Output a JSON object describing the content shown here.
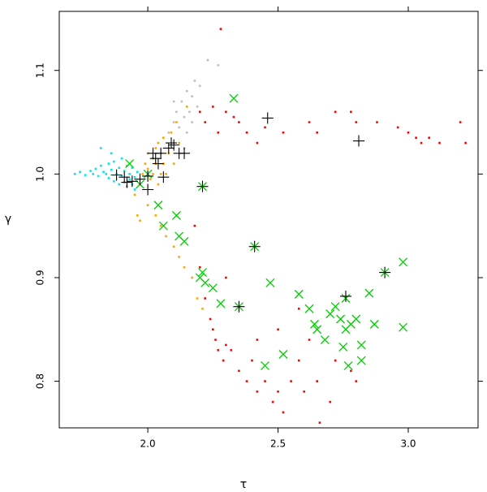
{
  "chart_data": {
    "type": "scatter",
    "x_label": "τ",
    "y_label": "γ",
    "xlim": [
      1.66,
      3.268
    ],
    "ylim": [
      0.755,
      1.157
    ],
    "xticks": [
      {
        "value": 2.0,
        "label": "2.0"
      },
      {
        "value": 2.5,
        "label": "2.5"
      },
      {
        "value": 3.0,
        "label": "3.0"
      }
    ],
    "yticks": [
      {
        "value": 0.8,
        "label": "0.8"
      },
      0.9,
      {
        "value": 1.0,
        "label": "1.0"
      },
      1.1
    ],
    "series": [
      {
        "color": "#00e5ee",
        "marker": "square",
        "x": [
          1.72,
          1.74,
          1.76,
          1.78,
          1.79,
          1.8,
          1.81,
          1.82,
          1.83,
          1.84,
          1.85,
          1.85,
          1.86,
          1.87,
          1.87,
          1.88,
          1.89,
          1.89,
          1.9,
          1.9,
          1.91,
          1.91,
          1.92,
          1.92,
          1.93,
          1.93,
          1.94,
          1.94,
          1.95,
          1.95,
          1.96,
          1.82,
          1.86
        ],
        "values": [
          1.0,
          1.002,
          0.999,
          1.003,
          1.0,
          1.005,
          0.998,
          1.008,
          1.002,
          1.0,
          1.01,
          0.996,
          1.004,
          0.993,
          1.012,
          1.0,
          0.99,
          1.006,
          0.998,
          1.015,
          0.992,
          1.003,
          0.988,
          1.008,
          0.995,
          1.0,
          0.99,
          1.006,
          0.997,
          0.985,
          1.002,
          1.025,
          1.02
        ]
      },
      {
        "color": "#bebebe",
        "marker": "square",
        "x": [
          2.08,
          2.1,
          2.11,
          2.12,
          2.13,
          2.14,
          2.15,
          2.16,
          2.17,
          2.18,
          2.19,
          2.2,
          2.12,
          2.15,
          2.08,
          2.23,
          2.27,
          2.1,
          2.17,
          2.14
        ],
        "values": [
          1.04,
          1.05,
          1.06,
          1.045,
          1.07,
          1.055,
          1.08,
          1.06,
          1.075,
          1.09,
          1.065,
          1.085,
          1.03,
          1.04,
          1.02,
          1.11,
          1.105,
          1.07,
          1.05,
          1.025
        ]
      },
      {
        "color": "#ffa500",
        "marker": "square",
        "x": [
          1.95,
          1.97,
          1.98,
          1.99,
          2.0,
          2.0,
          2.01,
          2.02,
          2.02,
          2.03,
          2.03,
          2.04,
          2.04,
          2.05,
          2.05,
          2.06,
          2.06,
          2.07,
          2.08,
          2.09,
          2.1,
          2.11,
          2.12,
          2.0,
          2.03,
          2.05,
          2.07,
          2.1,
          2.12,
          2.14,
          2.17,
          2.19,
          2.21,
          2.15,
          1.96,
          1.97
        ],
        "values": [
          0.98,
          0.99,
          1.0,
          1.01,
          1.005,
          1.02,
          0.995,
          1.0,
          1.015,
          1.025,
          1.01,
          0.99,
          1.03,
          1.0,
          1.02,
          1.01,
          1.035,
          1.0,
          1.02,
          1.04,
          1.01,
          1.05,
          1.03,
          0.97,
          0.96,
          0.95,
          0.94,
          0.93,
          0.92,
          0.91,
          0.9,
          0.88,
          0.87,
          1.065,
          0.96,
          0.955
        ]
      },
      {
        "color": "#ff0000",
        "marker": "square",
        "x": [
          2.28,
          2.2,
          2.22,
          2.25,
          2.27,
          2.3,
          2.33,
          2.35,
          2.38,
          2.42,
          2.45,
          2.52,
          2.62,
          2.65,
          2.72,
          2.78,
          2.8,
          2.88,
          2.96,
          3.0,
          3.03,
          3.05,
          3.08,
          3.12,
          3.2,
          3.22,
          2.22,
          2.24,
          2.25,
          2.26,
          2.27,
          2.29,
          2.3,
          2.32,
          2.35,
          2.38,
          2.4,
          2.42,
          2.45,
          2.48,
          2.5,
          2.52,
          2.55,
          2.58,
          2.6,
          2.62,
          2.65,
          2.7,
          2.72,
          2.78,
          2.8,
          2.5,
          2.58,
          2.42,
          2.18,
          2.2,
          2.3,
          2.66
        ],
        "values": [
          1.14,
          1.06,
          1.05,
          1.065,
          1.04,
          1.06,
          1.055,
          1.05,
          1.04,
          1.03,
          1.045,
          1.04,
          1.05,
          1.04,
          1.06,
          1.06,
          1.05,
          1.05,
          1.045,
          1.04,
          1.035,
          1.03,
          1.035,
          1.03,
          1.05,
          1.03,
          0.88,
          0.86,
          0.85,
          0.84,
          0.83,
          0.82,
          0.835,
          0.83,
          0.81,
          0.8,
          0.82,
          0.79,
          0.8,
          0.78,
          0.79,
          0.77,
          0.8,
          0.82,
          0.79,
          0.84,
          0.8,
          0.78,
          0.82,
          0.81,
          0.8,
          0.85,
          0.87,
          0.84,
          0.95,
          0.91,
          0.9,
          0.76
        ]
      },
      {
        "color": "#00cd00",
        "marker": "x",
        "x": [
          1.93,
          1.97,
          2.0,
          2.04,
          2.06,
          2.11,
          2.12,
          2.14,
          2.2,
          2.21,
          2.22,
          2.25,
          2.28,
          2.33,
          2.41,
          2.47,
          2.35,
          2.45,
          2.52,
          2.58,
          2.62,
          2.64,
          2.68,
          2.7,
          2.72,
          2.74,
          2.76,
          2.76,
          2.78,
          2.8,
          2.82,
          2.82,
          2.85,
          2.87,
          2.91,
          2.98,
          2.98,
          2.77,
          2.65,
          2.75,
          2.21
        ],
        "values": [
          1.01,
          0.99,
          1.0,
          0.97,
          0.95,
          0.96,
          0.94,
          0.935,
          0.9,
          0.905,
          0.895,
          0.89,
          0.875,
          1.073,
          0.93,
          0.895,
          0.872,
          0.815,
          0.826,
          0.884,
          0.87,
          0.855,
          0.84,
          0.865,
          0.872,
          0.86,
          0.85,
          0.88,
          0.855,
          0.86,
          0.835,
          0.82,
          0.885,
          0.855,
          0.905,
          0.915,
          0.852,
          0.815,
          0.85,
          0.833,
          0.988
        ]
      },
      {
        "color": "#000000",
        "marker": "plus",
        "x": [
          1.88,
          1.91,
          1.92,
          1.94,
          1.97,
          2.0,
          2.0,
          2.02,
          2.03,
          2.05,
          2.06,
          2.08,
          2.09,
          2.12,
          2.04,
          2.21,
          2.41,
          2.35,
          2.46,
          2.81,
          2.76,
          2.91,
          2.1,
          2.14
        ],
        "values": [
          0.999,
          0.997,
          0.992,
          0.993,
          0.995,
          0.985,
          0.998,
          1.02,
          1.015,
          1.02,
          0.997,
          1.025,
          1.03,
          1.02,
          1.01,
          0.988,
          0.93,
          0.872,
          1.054,
          1.032,
          0.882,
          0.905,
          1.028,
          1.02
        ]
      }
    ]
  }
}
